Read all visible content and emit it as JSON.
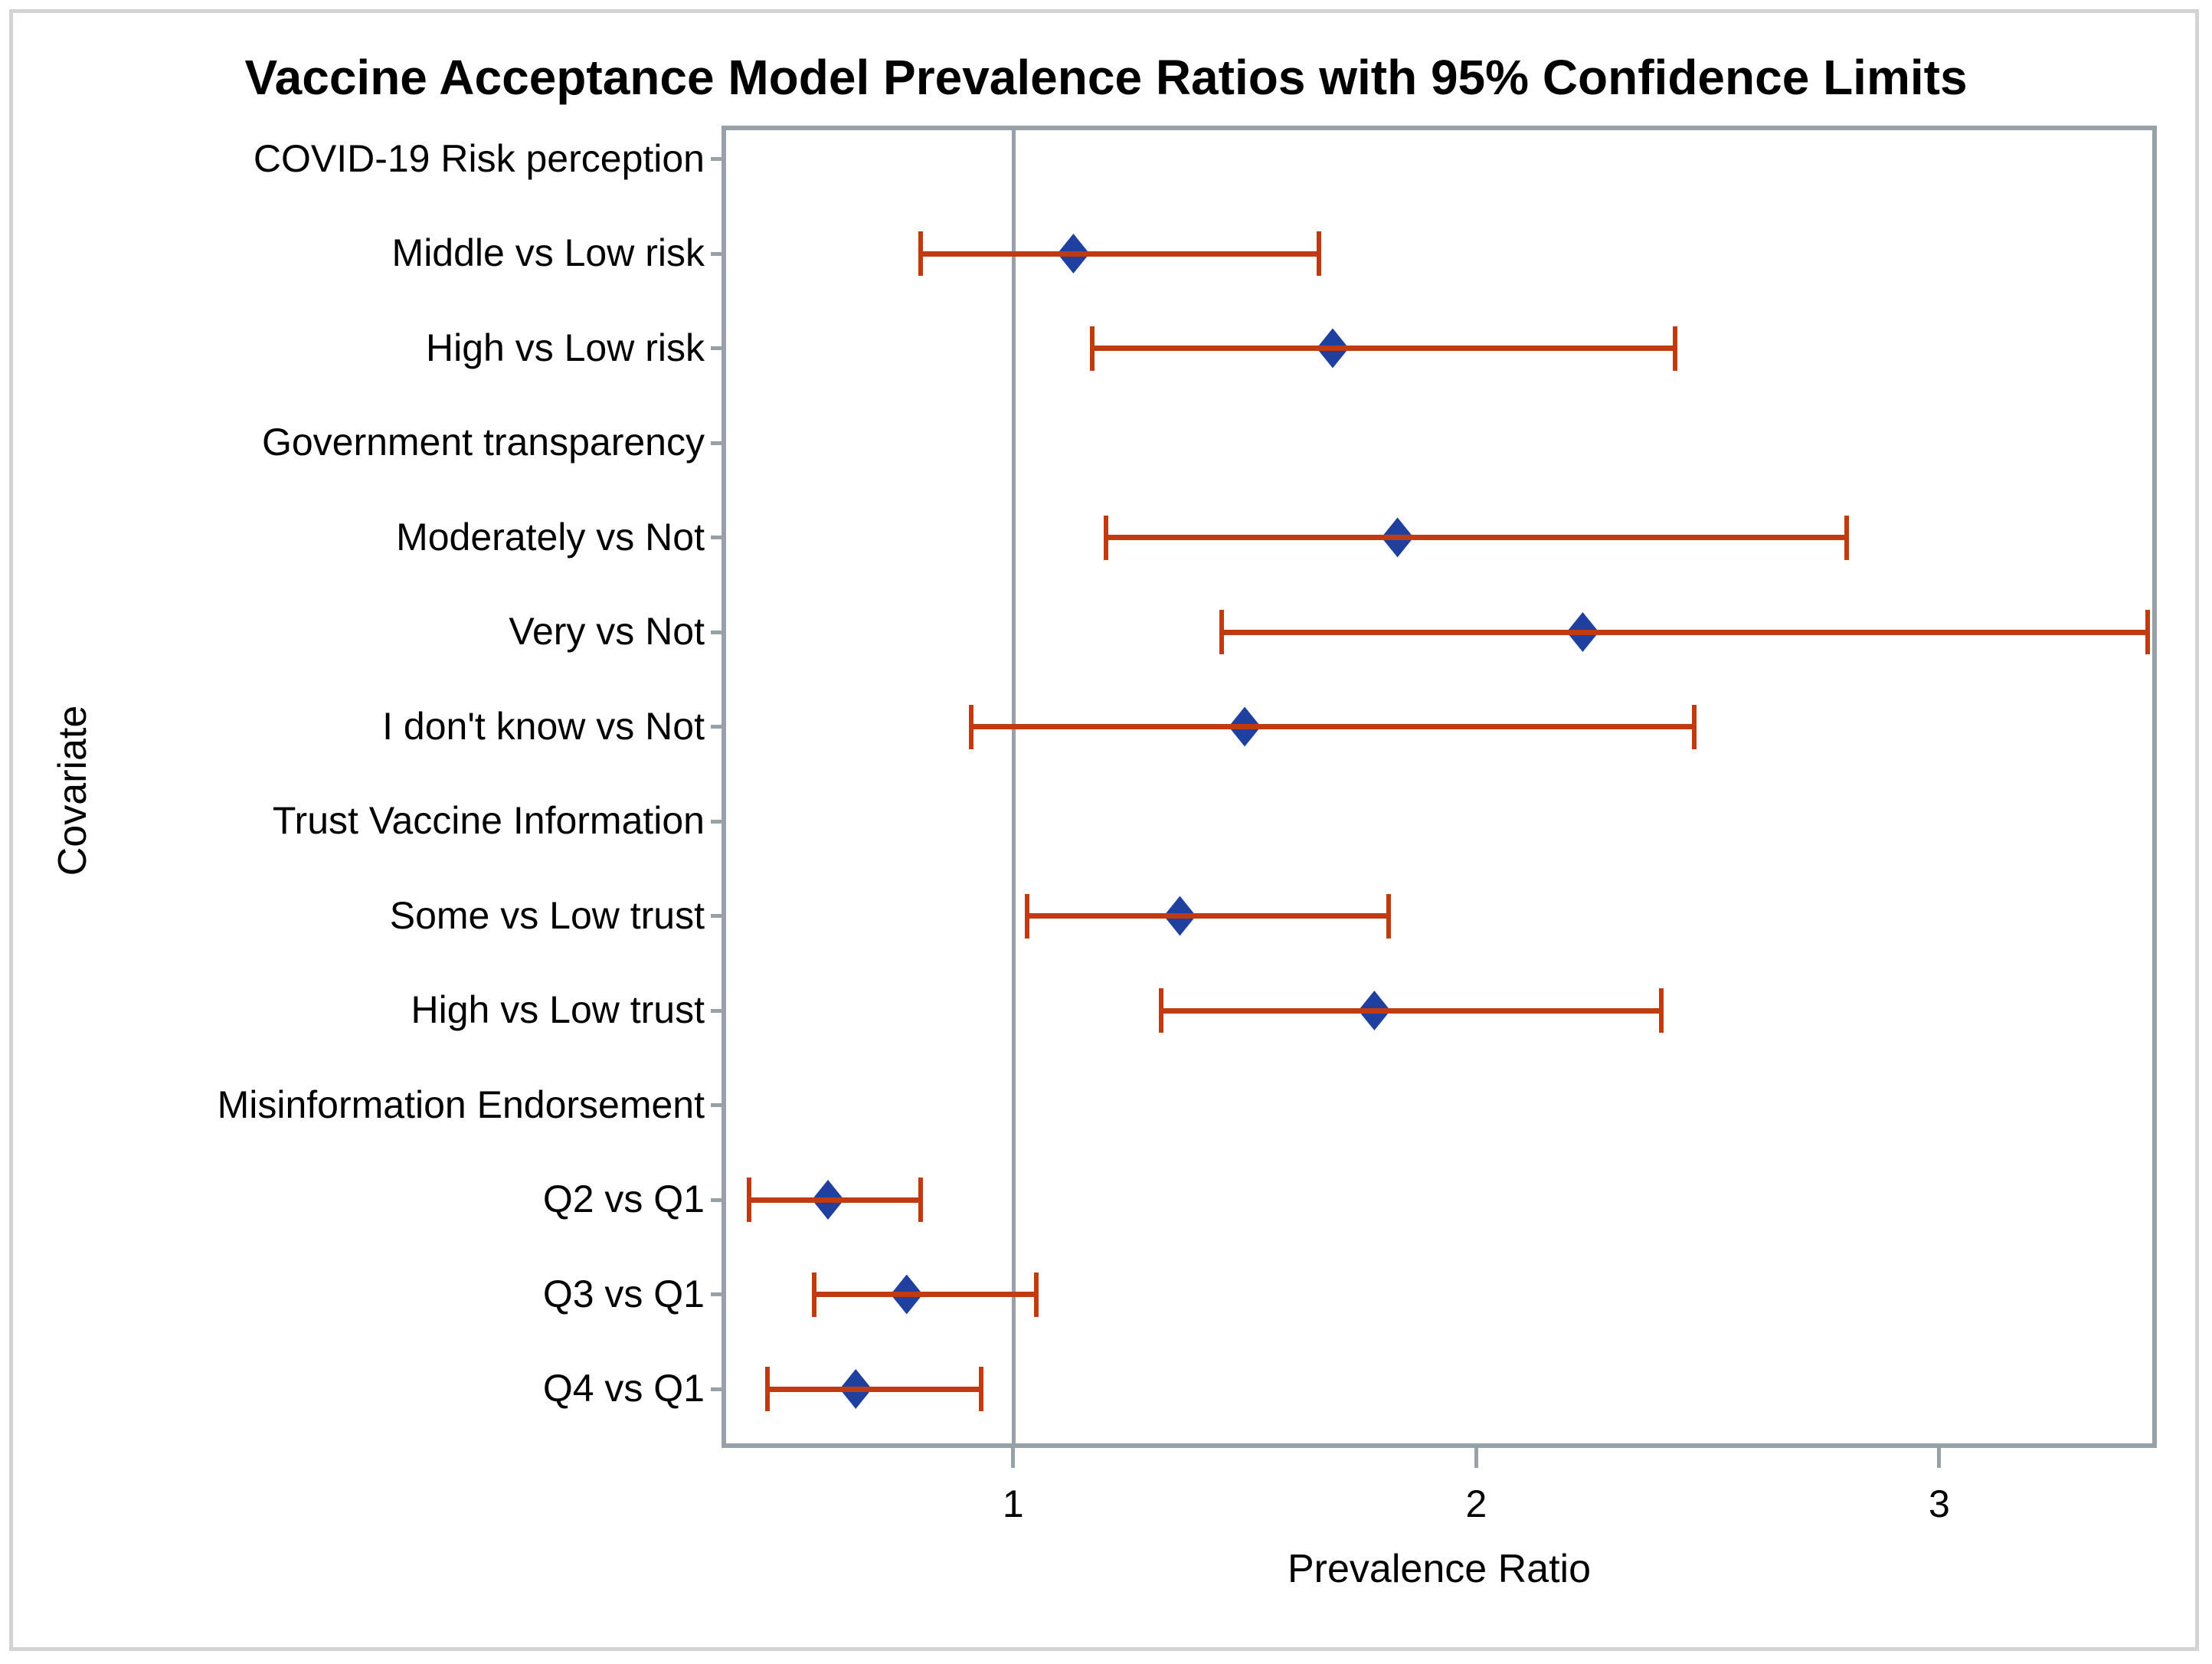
{
  "colors": {
    "marker_blue": "#2040A0",
    "ci_red": "#C23A10",
    "axis_gray": "#98A1A6",
    "frame_gray": "#D3D3D3",
    "text": "#000000"
  },
  "chart_data": {
    "type": "scatter",
    "subtype": "forest-plot-with-error-bars",
    "title": "Vaccine Acceptance Model Prevalence Ratios with 95% Confidence Limits",
    "xlabel": "Prevalence Ratio",
    "ylabel": "Covariate",
    "xlim": [
      0.38,
      3.46
    ],
    "x_ticks": [
      1,
      2,
      3
    ],
    "reference_line_x": 1,
    "grid": false,
    "legend": "none",
    "rows": [
      {
        "label": "COVID-19 Risk perception",
        "header": true,
        "estimate": null,
        "lcl": null,
        "ucl": null
      },
      {
        "label": "Middle vs Low risk",
        "header": false,
        "estimate": 1.13,
        "lcl": 0.8,
        "ucl": 1.66
      },
      {
        "label": "High vs Low risk",
        "header": false,
        "estimate": 1.69,
        "lcl": 1.17,
        "ucl": 2.43
      },
      {
        "label": "Government transparency",
        "header": true,
        "estimate": null,
        "lcl": null,
        "ucl": null
      },
      {
        "label": "Moderately vs Not",
        "header": false,
        "estimate": 1.83,
        "lcl": 1.2,
        "ucl": 2.8
      },
      {
        "label": "Very vs Not",
        "header": false,
        "estimate": 2.23,
        "lcl": 1.45,
        "ucl": 3.45
      },
      {
        "label": "I don't know vs Not",
        "header": false,
        "estimate": 1.5,
        "lcl": 0.91,
        "ucl": 2.47
      },
      {
        "label": "Trust Vaccine Information",
        "header": true,
        "estimate": null,
        "lcl": null,
        "ucl": null
      },
      {
        "label": "Some vs Low trust",
        "header": false,
        "estimate": 1.36,
        "lcl": 1.03,
        "ucl": 1.81
      },
      {
        "label": "High vs Low trust",
        "header": false,
        "estimate": 1.78,
        "lcl": 1.32,
        "ucl": 2.4
      },
      {
        "label": "Misinformation Endorsement",
        "header": true,
        "estimate": null,
        "lcl": null,
        "ucl": null
      },
      {
        "label": "Q2 vs Q1",
        "header": false,
        "estimate": 0.6,
        "lcl": 0.43,
        "ucl": 0.8
      },
      {
        "label": "Q3 vs Q1",
        "header": false,
        "estimate": 0.77,
        "lcl": 0.57,
        "ucl": 1.05
      },
      {
        "label": "Q4 vs Q1",
        "header": false,
        "estimate": 0.66,
        "lcl": 0.47,
        "ucl": 0.93
      }
    ]
  }
}
